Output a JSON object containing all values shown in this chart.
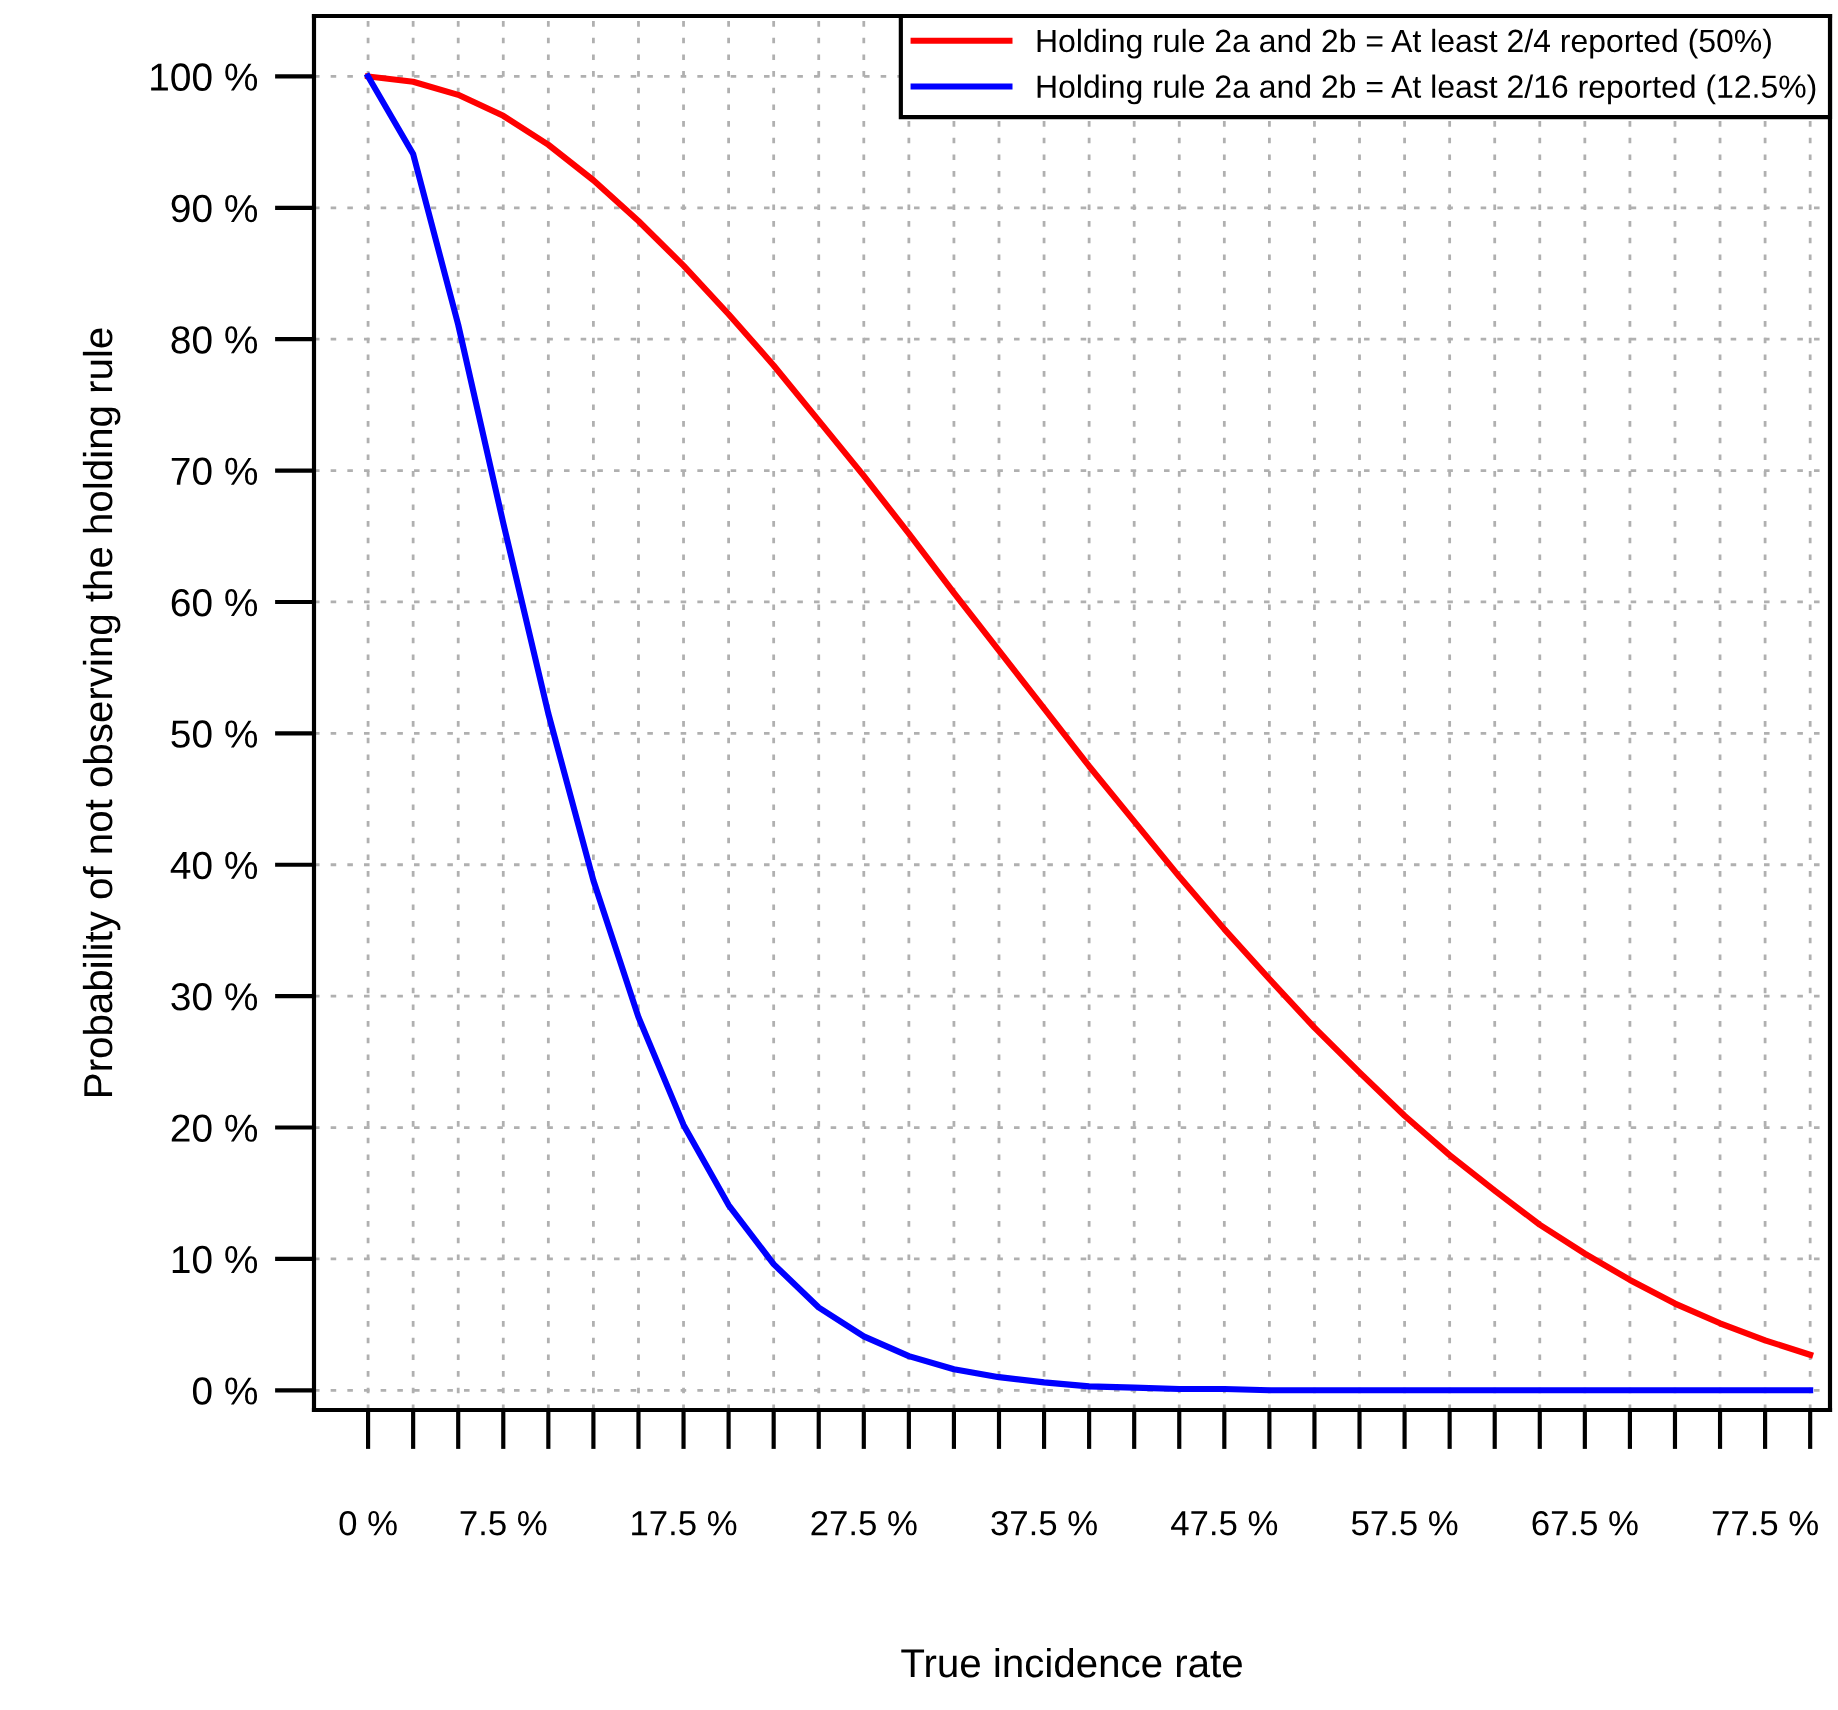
{
  "chart_data": {
    "type": "line",
    "xlabel": "True incidence rate",
    "ylabel": "Probability of not observing the holding rule",
    "x": [
      0,
      2.5,
      5,
      7.5,
      10,
      12.5,
      15,
      17.5,
      20,
      22.5,
      25,
      27.5,
      30,
      32.5,
      35,
      37.5,
      40,
      42.5,
      45,
      47.5,
      50,
      52.5,
      55,
      57.5,
      60,
      62.5,
      65,
      67.5,
      70,
      72.5,
      75,
      77.5,
      80
    ],
    "series": [
      {
        "name": "Holding rule 2a and 2b = At least 2/4 reported (50%)",
        "color": "#ff0000",
        "values": [
          100,
          99.6,
          98.6,
          97.0,
          94.8,
          92.1,
          89.0,
          85.6,
          81.9,
          78.0,
          73.8,
          69.6,
          65.2,
          60.7,
          56.3,
          51.9,
          47.5,
          43.3,
          39.1,
          35.1,
          31.3,
          27.6,
          24.2,
          20.9,
          17.9,
          15.2,
          12.6,
          10.4,
          8.4,
          6.6,
          5.1,
          3.8,
          2.7
        ]
      },
      {
        "name": "Holding rule 2a and 2b = At least 2/16 reported (12.5%)",
        "color": "#0000ff",
        "values": [
          100,
          94.1,
          81.1,
          66.0,
          51.5,
          38.8,
          28.4,
          20.2,
          14.1,
          9.6,
          6.3,
          4.1,
          2.6,
          1.6,
          1.0,
          0.6,
          0.3,
          0.2,
          0.1,
          0.1,
          0,
          0,
          0,
          0,
          0,
          0,
          0,
          0,
          0,
          0,
          0,
          0,
          0
        ]
      }
    ],
    "xlim": [
      -3.0,
      81.1
    ],
    "ylim": [
      -1.5,
      104.6
    ],
    "xticks": [
      {
        "value": 0,
        "label": "0 %"
      },
      {
        "value": 2.5,
        "label": null
      },
      {
        "value": 5,
        "label": null
      },
      {
        "value": 7.5,
        "label": "7.5 %"
      },
      {
        "value": 10,
        "label": null
      },
      {
        "value": 12.5,
        "label": null
      },
      {
        "value": 15,
        "label": null
      },
      {
        "value": 17.5,
        "label": "17.5 %"
      },
      {
        "value": 20,
        "label": null
      },
      {
        "value": 22.5,
        "label": null
      },
      {
        "value": 25,
        "label": null
      },
      {
        "value": 27.5,
        "label": "27.5 %"
      },
      {
        "value": 30,
        "label": null
      },
      {
        "value": 32.5,
        "label": null
      },
      {
        "value": 35,
        "label": null
      },
      {
        "value": 37.5,
        "label": "37.5 %"
      },
      {
        "value": 40,
        "label": null
      },
      {
        "value": 42.5,
        "label": null
      },
      {
        "value": 45,
        "label": null
      },
      {
        "value": 47.5,
        "label": "47.5 %"
      },
      {
        "value": 50,
        "label": null
      },
      {
        "value": 52.5,
        "label": null
      },
      {
        "value": 55,
        "label": null
      },
      {
        "value": 57.5,
        "label": "57.5 %"
      },
      {
        "value": 60,
        "label": null
      },
      {
        "value": 62.5,
        "label": null
      },
      {
        "value": 65,
        "label": null
      },
      {
        "value": 67.5,
        "label": "67.5 %"
      },
      {
        "value": 70,
        "label": null
      },
      {
        "value": 72.5,
        "label": null
      },
      {
        "value": 75,
        "label": null
      },
      {
        "value": 77.5,
        "label": "77.5 %"
      },
      {
        "value": 80,
        "label": null
      }
    ],
    "yticks": [
      {
        "value": 0,
        "label": "0 %"
      },
      {
        "value": 10,
        "label": "10 %"
      },
      {
        "value": 20,
        "label": "20 %"
      },
      {
        "value": 30,
        "label": "30 %"
      },
      {
        "value": 40,
        "label": "40 %"
      },
      {
        "value": 50,
        "label": "50 %"
      },
      {
        "value": 60,
        "label": "60 %"
      },
      {
        "value": 70,
        "label": "70 %"
      },
      {
        "value": 80,
        "label": "80 %"
      },
      {
        "value": 90,
        "label": "90 %"
      },
      {
        "value": 100,
        "label": "100 %"
      }
    ],
    "grid": true,
    "legend": "top right",
    "marker": "none",
    "line_style": "solid"
  }
}
